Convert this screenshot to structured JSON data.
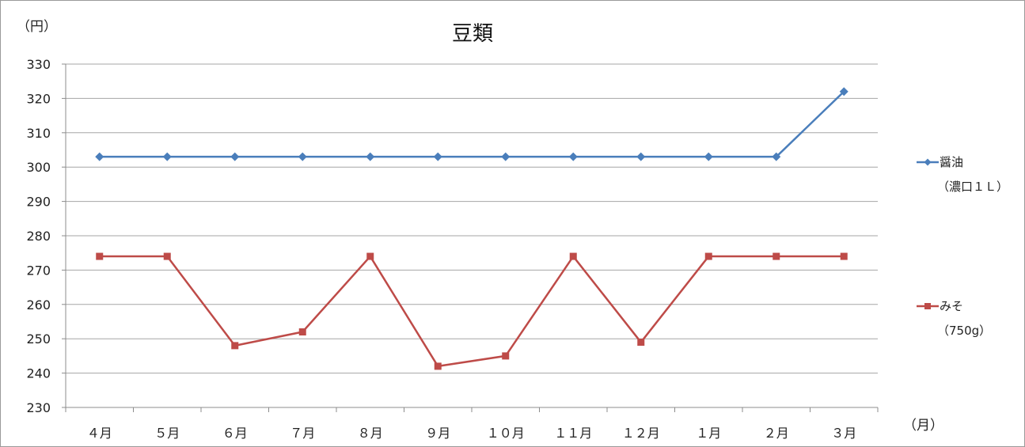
{
  "chart_data": {
    "type": "line",
    "title": "豆類",
    "ylabel": "（円）",
    "xlabel": "（月）",
    "ylim": [
      230,
      330
    ],
    "ystep": 10,
    "grid": true,
    "legend_position": "right",
    "categories": [
      "４月",
      "５月",
      "６月",
      "７月",
      "８月",
      "９月",
      "１０月",
      "１１月",
      "１２月",
      "１月",
      "２月",
      "３月"
    ],
    "series": [
      {
        "name_line1": "醤油",
        "name_line2": "（濃口１Ｌ）",
        "color": "#4a7ebb",
        "marker": "diamond",
        "values": [
          303,
          303,
          303,
          303,
          303,
          303,
          303,
          303,
          303,
          303,
          303,
          322
        ]
      },
      {
        "name_line1": "みそ",
        "name_line2": "（750g）",
        "color": "#be4b48",
        "marker": "square",
        "values": [
          274,
          274,
          248,
          252,
          274,
          242,
          245,
          274,
          249,
          274,
          274,
          274
        ]
      }
    ]
  }
}
